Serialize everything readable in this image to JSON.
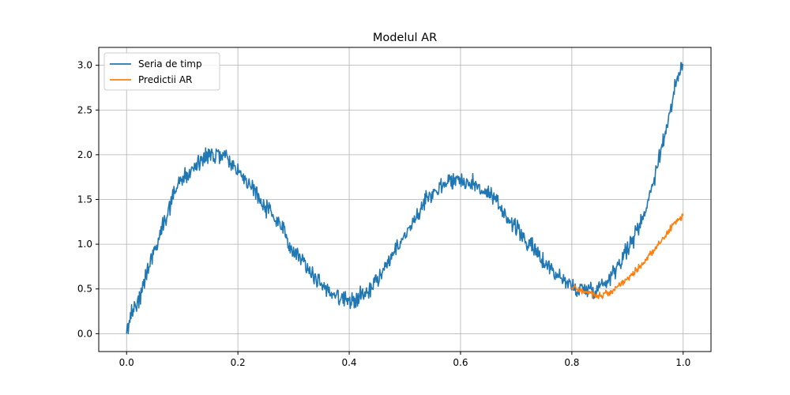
{
  "chart_data": {
    "type": "line",
    "title": "Modelul AR",
    "xlabel": "",
    "ylabel": "",
    "xlim": [
      -0.05,
      1.05
    ],
    "ylim": [
      -0.2,
      3.2
    ],
    "xticks": [
      0.0,
      0.2,
      0.4,
      0.6,
      0.8,
      1.0
    ],
    "xtick_labels": [
      "0.0",
      "0.2",
      "0.4",
      "0.6",
      "0.8",
      "1.0"
    ],
    "yticks": [
      0.0,
      0.5,
      1.0,
      1.5,
      2.0,
      2.5,
      3.0
    ],
    "ytick_labels": [
      "0.0",
      "0.5",
      "1.0",
      "1.5",
      "2.0",
      "2.5",
      "3.0"
    ],
    "grid": true,
    "legend_position": "top-left",
    "series": [
      {
        "name": "Seria de timp",
        "color": "#1f77b4",
        "x": [
          0.0,
          0.01,
          0.02,
          0.03,
          0.04,
          0.05,
          0.06,
          0.07,
          0.08,
          0.09,
          0.1,
          0.11,
          0.12,
          0.13,
          0.14,
          0.15,
          0.16,
          0.17,
          0.18,
          0.19,
          0.2,
          0.21,
          0.22,
          0.23,
          0.24,
          0.25,
          0.26,
          0.27,
          0.28,
          0.29,
          0.3,
          0.31,
          0.32,
          0.33,
          0.34,
          0.35,
          0.36,
          0.37,
          0.38,
          0.39,
          0.4,
          0.41,
          0.42,
          0.43,
          0.44,
          0.45,
          0.46,
          0.47,
          0.48,
          0.49,
          0.5,
          0.51,
          0.52,
          0.53,
          0.54,
          0.55,
          0.56,
          0.57,
          0.58,
          0.59,
          0.6,
          0.61,
          0.62,
          0.63,
          0.64,
          0.65,
          0.66,
          0.67,
          0.68,
          0.69,
          0.7,
          0.71,
          0.72,
          0.73,
          0.74,
          0.75,
          0.76,
          0.77,
          0.78,
          0.79,
          0.8,
          0.81,
          0.82,
          0.83,
          0.84,
          0.85,
          0.86,
          0.87,
          0.88,
          0.89,
          0.9,
          0.91,
          0.92,
          0.93,
          0.94,
          0.95,
          0.96,
          0.97,
          0.98,
          0.99,
          1.0
        ],
        "y": [
          0.0,
          0.25,
          0.35,
          0.55,
          0.75,
          0.95,
          1.1,
          1.3,
          1.5,
          1.65,
          1.72,
          1.78,
          1.85,
          1.9,
          1.95,
          2.0,
          2.0,
          1.98,
          1.95,
          1.88,
          1.82,
          1.75,
          1.68,
          1.6,
          1.5,
          1.42,
          1.35,
          1.25,
          1.15,
          1.05,
          0.95,
          0.88,
          0.8,
          0.7,
          0.62,
          0.55,
          0.5,
          0.45,
          0.42,
          0.38,
          0.38,
          0.38,
          0.42,
          0.48,
          0.52,
          0.6,
          0.7,
          0.8,
          0.9,
          1.0,
          1.1,
          1.2,
          1.3,
          1.42,
          1.52,
          1.58,
          1.62,
          1.68,
          1.72,
          1.72,
          1.72,
          1.7,
          1.68,
          1.65,
          1.6,
          1.55,
          1.5,
          1.42,
          1.35,
          1.25,
          1.18,
          1.1,
          1.02,
          0.95,
          0.88,
          0.8,
          0.75,
          0.68,
          0.62,
          0.58,
          0.52,
          0.5,
          0.5,
          0.5,
          0.5,
          0.52,
          0.58,
          0.65,
          0.75,
          0.85,
          0.95,
          1.05,
          1.2,
          1.35,
          1.55,
          1.8,
          2.05,
          2.3,
          2.6,
          2.85,
          3.0
        ]
      },
      {
        "name": "Predictii AR",
        "color": "#ff7f0e",
        "x": [
          0.8,
          0.81,
          0.82,
          0.83,
          0.84,
          0.85,
          0.86,
          0.87,
          0.88,
          0.89,
          0.9,
          0.91,
          0.92,
          0.93,
          0.94,
          0.95,
          0.96,
          0.97,
          0.98,
          0.99,
          1.0
        ],
        "y": [
          0.52,
          0.5,
          0.48,
          0.46,
          0.43,
          0.42,
          0.44,
          0.47,
          0.52,
          0.57,
          0.62,
          0.67,
          0.73,
          0.8,
          0.88,
          0.95,
          1.03,
          1.12,
          1.2,
          1.27,
          1.32
        ]
      }
    ]
  }
}
